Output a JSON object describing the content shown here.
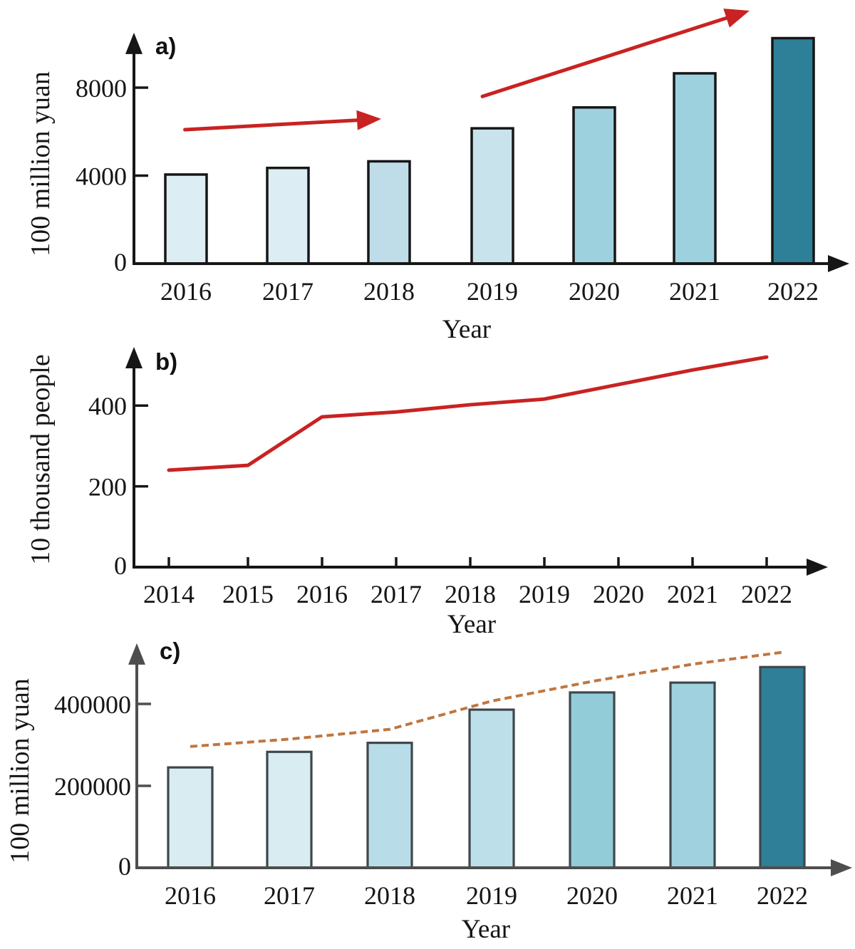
{
  "figure": {
    "background": "#ffffff",
    "description_labels": {
      "panel_a": "a)",
      "panel_b": "b)",
      "panel_c": "c)"
    }
  },
  "colors": {
    "red_annotation": "#c92222",
    "tan_trend": "#c0763f",
    "axis_black": "#161616",
    "axis_gray_panel_c": "#4e4e4e",
    "bar_border_dark": "#161616",
    "bar_border_gray": "#3e474c",
    "darkest_bar_teal": "#2e8098"
  },
  "chart_data": [
    {
      "id": "a",
      "type": "bar",
      "panel_label": "a)",
      "xlabel": "Year",
      "ylabel": "100 million yuan",
      "categories": [
        "2016",
        "2017",
        "2018",
        "2019",
        "2020",
        "2021",
        "2022"
      ],
      "values": [
        4050,
        4350,
        4650,
        6150,
        7100,
        8650,
        10250
      ],
      "bar_colors": [
        "#dcedf3",
        "#dcedf3",
        "#bedde8",
        "#c9e3ec",
        "#9ed1de",
        "#9ed1de",
        "#2e8098"
      ],
      "yticks": [
        0,
        4000,
        8000
      ],
      "ylim": [
        0,
        10500
      ],
      "grid": false,
      "annotations": [
        {
          "type": "trend-arrow",
          "color": "#c92222",
          "from_year": 2015.99,
          "from_value": 6090,
          "to_year": 2017.93,
          "to_value": 6580
        },
        {
          "type": "trend-arrow",
          "color": "#c92222",
          "from_year": 2018.93,
          "from_value": 7600,
          "to_year": 2021.57,
          "to_value": 11500
        }
      ]
    },
    {
      "id": "b",
      "type": "line",
      "panel_label": "b)",
      "xlabel": "Year",
      "ylabel": "10 thousand people",
      "categories": [
        "2014",
        "2015",
        "2016",
        "2017",
        "2018",
        "2019",
        "2020",
        "2021",
        "2022"
      ],
      "values": [
        240,
        252,
        372,
        384,
        402,
        416,
        452,
        488,
        520
      ],
      "line_color": "#c92222",
      "yticks": [
        0,
        200,
        400
      ],
      "ylim": [
        0,
        545
      ],
      "grid": false
    },
    {
      "id": "c",
      "type": "bar",
      "panel_label": "c)",
      "xlabel": "Year",
      "ylabel": "100 million yuan",
      "categories": [
        "2016",
        "2017",
        "2018",
        "2019",
        "2020",
        "2021",
        "2022"
      ],
      "values": [
        245000,
        283000,
        305000,
        386000,
        428000,
        452000,
        490000
      ],
      "bar_colors": [
        "#d8ecf2",
        "#d8ecf2",
        "#b8dde8",
        "#bddfe9",
        "#92ccd9",
        "#9fd2de",
        "#2e7f97"
      ],
      "trend_line": {
        "style": "dashed",
        "color": "#c0763f",
        "values": [
          296000,
          314000,
          338000,
          407000,
          455000,
          497000,
          526000
        ]
      },
      "yticks": [
        0,
        200000,
        400000
      ],
      "ylim": [
        0,
        548000
      ],
      "grid": false
    }
  ]
}
